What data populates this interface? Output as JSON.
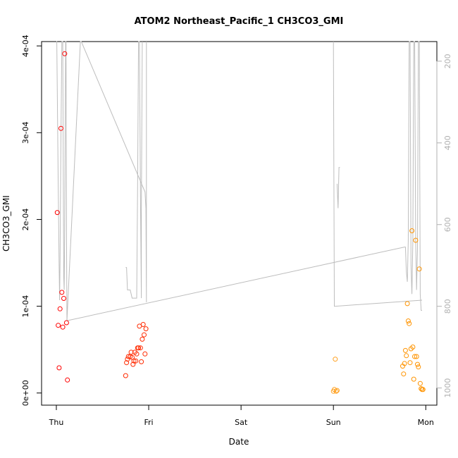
{
  "chart_data": {
    "type": "scatter",
    "title": "ATOM2 Northeast_Pacific_1 CH3CO3_GMI",
    "xlabel": "Date",
    "ylabel": "CH3CO3_GMI",
    "x_ticks": [
      "Thu",
      "Fri",
      "Sat",
      "Sun",
      "Mon"
    ],
    "xlim": [
      -0.16,
      4.12
    ],
    "ylim": [
      -1.4e-05,
      0.000405
    ],
    "y_ticks": [
      {
        "value": 0,
        "label": "0e+00"
      },
      {
        "value": 0.0001,
        "label": "1e-04"
      },
      {
        "value": 0.0002,
        "label": "2e-04"
      },
      {
        "value": 0.0003,
        "label": "3e-04"
      },
      {
        "value": 0.0004,
        "label": "4e-04"
      }
    ],
    "right_axis": {
      "color": "#b0b0b0",
      "reversed": true,
      "lim": [
        152,
        1042
      ],
      "ticks": [
        200,
        400,
        600,
        800,
        1000
      ]
    },
    "grid": false,
    "legend": "none",
    "colors": {
      "day1": "#ff0000",
      "day2": "#ff2a00",
      "day4": "#ff9f1c",
      "day5": "#ff9400",
      "line": "#bdbdbd"
    },
    "series": [
      {
        "color": "#ff0000",
        "points": [
          [
            0.01,
            0.000208
          ],
          [
            0.02,
            7.8e-05
          ],
          [
            0.03,
            2.9e-05
          ],
          [
            0.04,
            9.7e-05
          ],
          [
            0.05,
            0.000305
          ],
          [
            0.06,
            0.000116
          ],
          [
            0.07,
            7.6e-05
          ],
          [
            0.08,
            0.000109
          ],
          [
            0.09,
            0.000391
          ],
          [
            0.11,
            8.1e-05
          ],
          [
            0.12,
            1.5e-05
          ]
        ]
      },
      {
        "color": "#ff2a00",
        "points": [
          [
            0.75,
            2e-05
          ],
          [
            0.76,
            3.5e-05
          ],
          [
            0.77,
            3.9e-05
          ],
          [
            0.78,
            4.2e-05
          ],
          [
            0.8,
            4.2e-05
          ],
          [
            0.81,
            4.7e-05
          ],
          [
            0.82,
            4.1e-05
          ],
          [
            0.83,
            3.3e-05
          ],
          [
            0.84,
            3.7e-05
          ],
          [
            0.85,
            4.7e-05
          ],
          [
            0.86,
            3.7e-05
          ],
          [
            0.87,
            4.5e-05
          ],
          [
            0.88,
            5.2e-05
          ],
          [
            0.89,
            5.2e-05
          ],
          [
            0.9,
            7.7e-05
          ],
          [
            0.91,
            5.2e-05
          ],
          [
            0.92,
            3.6e-05
          ],
          [
            0.93,
            6.2e-05
          ],
          [
            0.94,
            7.9e-05
          ],
          [
            0.95,
            6.7e-05
          ],
          [
            0.96,
            4.5e-05
          ],
          [
            0.97,
            7.4e-05
          ]
        ]
      },
      {
        "color": "#ff9f1c",
        "points": [
          [
            3.0,
            2e-06
          ],
          [
            3.01,
            4e-06
          ],
          [
            3.02,
            3.9e-05
          ],
          [
            3.03,
            2e-06
          ],
          [
            3.04,
            3e-06
          ]
        ]
      },
      {
        "color": "#ff9400",
        "points": [
          [
            3.75,
            3.1e-05
          ],
          [
            3.76,
            2.2e-05
          ],
          [
            3.77,
            3.4e-05
          ],
          [
            3.78,
            4.9e-05
          ],
          [
            3.79,
            4.3e-05
          ],
          [
            3.8,
            0.000103
          ],
          [
            3.81,
            8.3e-05
          ],
          [
            3.82,
            8e-05
          ],
          [
            3.83,
            3.5e-05
          ],
          [
            3.84,
            5.1e-05
          ],
          [
            3.85,
            0.000187
          ],
          [
            3.86,
            5.3e-05
          ],
          [
            3.87,
            1.6e-05
          ],
          [
            3.88,
            4.2e-05
          ],
          [
            3.89,
            0.000176
          ],
          [
            3.9,
            4.2e-05
          ],
          [
            3.91,
            3.3e-05
          ],
          [
            3.92,
            3e-05
          ],
          [
            3.93,
            0.000143
          ],
          [
            3.94,
            1.1e-05
          ],
          [
            3.95,
            5e-06
          ],
          [
            3.96,
            4e-06
          ],
          [
            3.97,
            4e-06
          ]
        ]
      }
    ],
    "line_series": {
      "axis": "right",
      "color": "#bdbdbd",
      "points": [
        [
          0.0,
          152
        ],
        [
          0.005,
          152
        ],
        [
          0.02,
          500
        ],
        [
          0.03,
          700
        ],
        [
          0.035,
          785
        ],
        [
          0.04,
          690
        ],
        [
          0.05,
          390
        ],
        [
          0.06,
          152
        ],
        [
          0.07,
          152
        ],
        [
          0.075,
          480
        ],
        [
          0.08,
          730
        ],
        [
          0.085,
          760
        ],
        [
          0.09,
          620
        ],
        [
          0.1,
          152
        ],
        [
          0.105,
          152
        ],
        [
          0.11,
          630
        ],
        [
          0.115,
          835
        ],
        [
          0.26,
          152
        ],
        [
          0.27,
          152
        ],
        [
          0.96,
          520
        ],
        [
          0.97,
          560
        ],
        [
          0.975,
          790
        ],
        [
          0.975,
          152
        ]
      ],
      "segments": [
        [
          [
            0.75,
            705
          ],
          [
            0.76,
            705
          ],
          [
            0.77,
            760
          ],
          [
            0.8,
            760
          ],
          [
            0.82,
            780
          ],
          [
            0.87,
            780
          ],
          [
            0.88,
            505
          ],
          [
            0.89,
            152
          ],
          [
            0.9,
            152
          ],
          [
            0.91,
            520
          ],
          [
            0.92,
            780
          ],
          [
            0.92,
            580
          ],
          [
            0.93,
            152
          ]
        ],
        [
          [
            0.12,
            835
          ],
          [
            3.77,
            655
          ],
          [
            3.78,
            655
          ],
          [
            3.79,
            715
          ],
          [
            3.8,
            740
          ],
          [
            3.81,
            640
          ],
          [
            3.82,
            152
          ],
          [
            3.83,
            152
          ],
          [
            3.84,
            700
          ],
          [
            3.85,
            770
          ],
          [
            3.86,
            640
          ],
          [
            3.87,
            152
          ],
          [
            3.88,
            152
          ],
          [
            3.89,
            640
          ],
          [
            3.9,
            760
          ],
          [
            3.91,
            660
          ],
          [
            3.92,
            152
          ],
          [
            3.93,
            152
          ],
          [
            3.94,
            770
          ],
          [
            3.95,
            810
          ],
          [
            3.96,
            810
          ]
        ],
        [
          [
            3.0,
            152
          ],
          [
            3.01,
            800
          ],
          [
            3.96,
            785
          ]
        ],
        [
          [
            3.04,
            500
          ],
          [
            3.05,
            560
          ],
          [
            3.06,
            460
          ],
          [
            3.07,
            460
          ]
        ]
      ]
    }
  }
}
